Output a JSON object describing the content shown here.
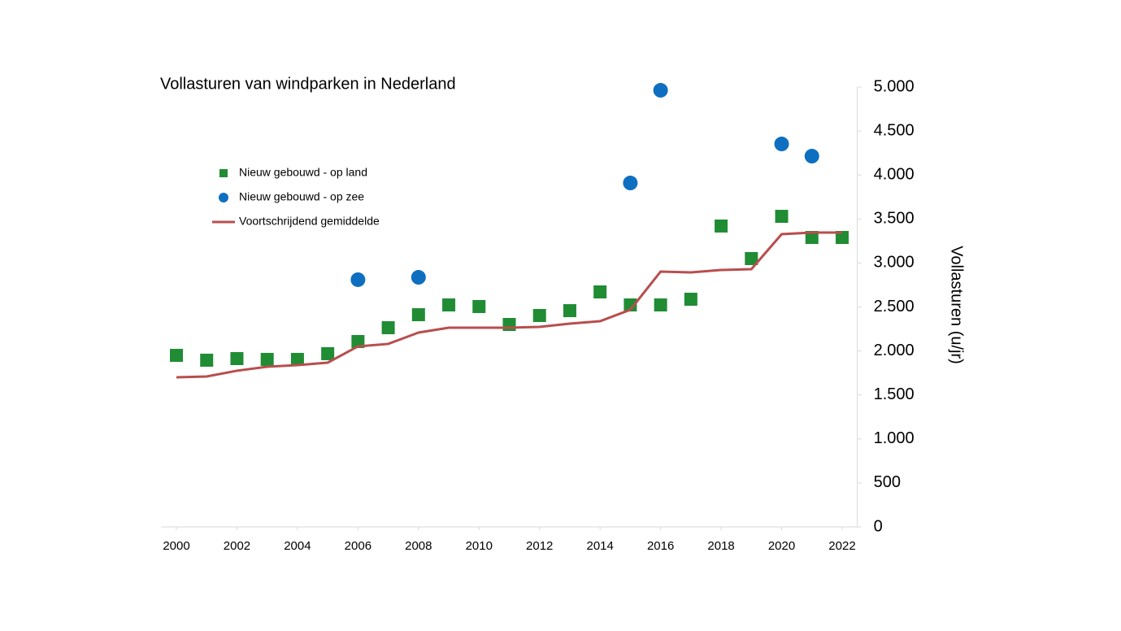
{
  "chart_data": {
    "type": "scatter",
    "title": "Vollasturen van windparken in Nederland",
    "y_label": "Vollasturen (u/jr)",
    "x": [
      2000,
      2001,
      2002,
      2003,
      2004,
      2005,
      2006,
      2007,
      2008,
      2009,
      2010,
      2011,
      2012,
      2013,
      2014,
      2015,
      2016,
      2017,
      2018,
      2019,
      2020,
      2021,
      2022
    ],
    "series": [
      {
        "name": "Nieuw gebouwd - op land",
        "type": "scatter",
        "marker": "square",
        "color": "#208c34",
        "values": [
          1950,
          1895,
          1913,
          1904,
          1904,
          1969,
          2107,
          2264,
          2412,
          2523,
          2505,
          2301,
          2403,
          2458,
          2671,
          2523,
          2523,
          2588,
          3420,
          3050,
          3530,
          3290,
          3290
        ]
      },
      {
        "name": "Nieuw gebouwd - op zee",
        "type": "scatter",
        "marker": "circle",
        "color": "#0e6fc0",
        "values": [
          null,
          null,
          null,
          null,
          null,
          null,
          2810,
          null,
          2837,
          null,
          null,
          null,
          null,
          null,
          null,
          3909,
          4963,
          null,
          null,
          null,
          4353,
          4214,
          null
        ]
      },
      {
        "name": "Voortschrijdend gemiddelde",
        "type": "line",
        "color": "#b84e4e",
        "values": [
          1700,
          1710,
          1775,
          1821,
          1839,
          1867,
          2052,
          2080,
          2209,
          2264,
          2264,
          2264,
          2274,
          2311,
          2338,
          2468,
          2902,
          2893,
          2920,
          2930,
          3327,
          3346,
          3346
        ]
      }
    ],
    "xlim": [
      1999.5,
      2022.5
    ],
    "xticks": [
      2000,
      2002,
      2004,
      2006,
      2008,
      2010,
      2012,
      2014,
      2016,
      2018,
      2020,
      2022
    ],
    "ylim": [
      0,
      5000
    ],
    "yticks": [
      0,
      500,
      {
        "value": 1000,
        "label": "1.000"
      },
      {
        "value": 1500,
        "label": "1.500"
      },
      {
        "value": 2000,
        "label": "2.000"
      },
      {
        "value": 2500,
        "label": "2.500"
      },
      {
        "value": 3000,
        "label": "3.000"
      },
      {
        "value": 3500,
        "label": "3.500"
      },
      {
        "value": 4000,
        "label": "4.000"
      },
      {
        "value": 4500,
        "label": "4.500"
      },
      {
        "value": 5000,
        "label": "5.000"
      }
    ],
    "legend": "upper left",
    "grid": false
  }
}
